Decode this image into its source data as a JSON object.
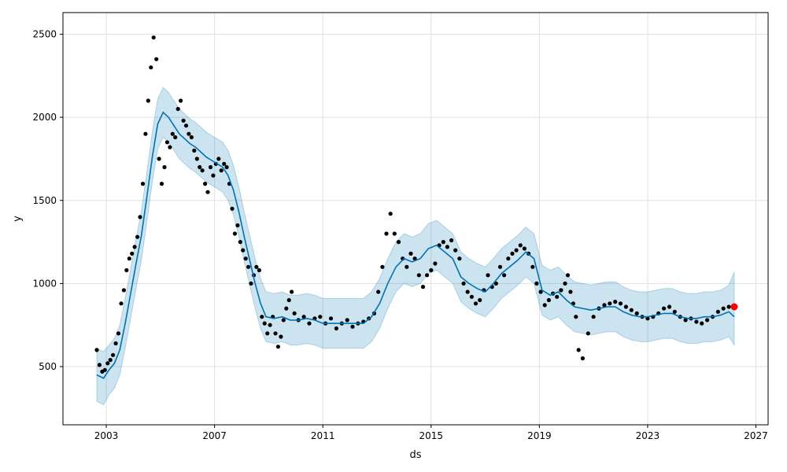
{
  "chart_data": {
    "type": "line",
    "title": "",
    "xlabel": "ds",
    "ylabel": "y",
    "xlim": [
      2001.4,
      2027.45
    ],
    "ylim": [
      150,
      2630
    ],
    "grid": true,
    "x_ticks": [
      2003,
      2007,
      2011,
      2015,
      2019,
      2023,
      2027
    ],
    "x_tick_labels": [
      "2003",
      "2007",
      "2011",
      "2015",
      "2019",
      "2023",
      "2027"
    ],
    "y_ticks": [
      500,
      1000,
      1500,
      2000,
      2500
    ],
    "y_tick_labels": [
      "500",
      "1000",
      "1500",
      "2000",
      "2500"
    ],
    "colors": {
      "observed": "#000000",
      "forecast_line": "#0072b2",
      "uncertainty_band": "#0072b2",
      "highlight_point": "#ff0000",
      "grid": "#e0e0e0"
    },
    "series": [
      {
        "kind": "forecast",
        "x": [
          2002.65,
          2002.9,
          2003.1,
          2003.3,
          2003.5,
          2003.7,
          2003.9,
          2004.1,
          2004.3,
          2004.5,
          2004.7,
          2004.9,
          2005.1,
          2005.3,
          2005.5,
          2005.7,
          2005.9,
          2006.1,
          2006.3,
          2006.5,
          2006.7,
          2006.9,
          2007.1,
          2007.3,
          2007.5,
          2007.7,
          2007.9,
          2008.1,
          2008.3,
          2008.5,
          2008.7,
          2008.9,
          2009.2,
          2009.5,
          2009.8,
          2010.1,
          2010.4,
          2010.7,
          2011.0,
          2011.3,
          2011.6,
          2011.9,
          2012.2,
          2012.5,
          2012.8,
          2013.1,
          2013.4,
          2013.7,
          2014.0,
          2014.3,
          2014.6,
          2014.9,
          2015.2,
          2015.5,
          2015.8,
          2016.1,
          2016.4,
          2016.7,
          2017.0,
          2017.3,
          2017.6,
          2017.9,
          2018.2,
          2018.5,
          2018.8,
          2019.1,
          2019.4,
          2019.7,
          2020.0,
          2020.3,
          2020.6,
          2020.9,
          2021.2,
          2021.5,
          2021.8,
          2022.1,
          2022.4,
          2022.7,
          2023.0,
          2023.3,
          2023.6,
          2023.9,
          2024.2,
          2024.5,
          2024.8,
          2025.1,
          2025.4,
          2025.7,
          2026.0,
          2026.2
        ],
        "y": [
          450,
          430,
          480,
          520,
          600,
          760,
          940,
          1120,
          1290,
          1520,
          1760,
          1960,
          2030,
          2000,
          1950,
          1900,
          1870,
          1840,
          1820,
          1790,
          1760,
          1740,
          1720,
          1700,
          1650,
          1560,
          1430,
          1280,
          1140,
          1000,
          880,
          800,
          790,
          800,
          780,
          780,
          790,
          780,
          760,
          760,
          760,
          760,
          760,
          760,
          800,
          880,
          1000,
          1100,
          1150,
          1130,
          1150,
          1210,
          1230,
          1190,
          1150,
          1040,
          1000,
          970,
          950,
          1000,
          1060,
          1100,
          1140,
          1190,
          1150,
          960,
          930,
          950,
          900,
          860,
          850,
          840,
          850,
          860,
          860,
          830,
          810,
          800,
          800,
          810,
          820,
          820,
          800,
          790,
          790,
          800,
          800,
          810,
          830,
          800
        ]
      },
      {
        "kind": "uncertainty",
        "x": [
          2002.65,
          2002.9,
          2003.1,
          2003.3,
          2003.5,
          2003.7,
          2003.9,
          2004.1,
          2004.3,
          2004.5,
          2004.7,
          2004.9,
          2005.1,
          2005.3,
          2005.5,
          2005.7,
          2005.9,
          2006.1,
          2006.3,
          2006.5,
          2006.7,
          2006.9,
          2007.1,
          2007.3,
          2007.5,
          2007.7,
          2007.9,
          2008.1,
          2008.3,
          2008.5,
          2008.7,
          2008.9,
          2009.2,
          2009.5,
          2009.8,
          2010.1,
          2010.4,
          2010.7,
          2011.0,
          2011.3,
          2011.6,
          2011.9,
          2012.2,
          2012.5,
          2012.8,
          2013.1,
          2013.4,
          2013.7,
          2014.0,
          2014.3,
          2014.6,
          2014.9,
          2015.2,
          2015.5,
          2015.8,
          2016.1,
          2016.4,
          2016.7,
          2017.0,
          2017.3,
          2017.6,
          2017.9,
          2018.2,
          2018.5,
          2018.8,
          2019.1,
          2019.4,
          2019.7,
          2020.0,
          2020.3,
          2020.6,
          2020.9,
          2021.2,
          2021.5,
          2021.8,
          2022.1,
          2022.4,
          2022.7,
          2023.0,
          2023.3,
          2023.6,
          2023.9,
          2024.2,
          2024.5,
          2024.8,
          2025.1,
          2025.4,
          2025.7,
          2026.0,
          2026.2
        ],
        "lower": [
          290,
          270,
          330,
          370,
          450,
          610,
          790,
          970,
          1140,
          1370,
          1610,
          1810,
          1880,
          1850,
          1800,
          1750,
          1720,
          1690,
          1670,
          1640,
          1610,
          1590,
          1570,
          1550,
          1500,
          1410,
          1280,
          1130,
          990,
          850,
          730,
          650,
          640,
          650,
          630,
          630,
          640,
          630,
          610,
          610,
          610,
          610,
          610,
          610,
          650,
          730,
          850,
          950,
          1000,
          980,
          1000,
          1060,
          1080,
          1040,
          1000,
          890,
          850,
          820,
          800,
          850,
          910,
          950,
          990,
          1040,
          1000,
          810,
          780,
          800,
          750,
          710,
          700,
          690,
          700,
          710,
          710,
          680,
          660,
          650,
          650,
          660,
          670,
          670,
          650,
          640,
          640,
          650,
          650,
          660,
          680,
          630
        ],
        "upper": [
          610,
          590,
          630,
          670,
          750,
          910,
          1090,
          1270,
          1440,
          1670,
          1910,
          2110,
          2180,
          2150,
          2100,
          2050,
          2020,
          1990,
          1970,
          1940,
          1910,
          1890,
          1870,
          1850,
          1800,
          1710,
          1580,
          1430,
          1290,
          1150,
          1030,
          950,
          940,
          950,
          930,
          930,
          940,
          930,
          910,
          910,
          910,
          910,
          910,
          910,
          950,
          1030,
          1150,
          1250,
          1300,
          1280,
          1300,
          1360,
          1380,
          1340,
          1300,
          1190,
          1150,
          1120,
          1100,
          1150,
          1210,
          1250,
          1290,
          1340,
          1300,
          1110,
          1080,
          1100,
          1050,
          1010,
          1000,
          990,
          1000,
          1010,
          1010,
          980,
          960,
          950,
          950,
          960,
          970,
          970,
          950,
          940,
          940,
          950,
          950,
          960,
          990,
          1070
        ]
      },
      {
        "kind": "observed",
        "x": [
          2002.65,
          2002.75,
          2002.85,
          2002.95,
          2003.05,
          2003.15,
          2003.25,
          2003.35,
          2003.45,
          2003.55,
          2003.65,
          2003.75,
          2003.85,
          2003.95,
          2004.05,
          2004.15,
          2004.25,
          2004.35,
          2004.45,
          2004.55,
          2004.65,
          2004.75,
          2004.85,
          2004.95,
          2005.05,
          2005.15,
          2005.25,
          2005.35,
          2005.45,
          2005.55,
          2005.65,
          2005.75,
          2005.85,
          2005.95,
          2006.05,
          2006.15,
          2006.25,
          2006.35,
          2006.45,
          2006.55,
          2006.65,
          2006.75,
          2006.85,
          2006.95,
          2007.05,
          2007.15,
          2007.25,
          2007.35,
          2007.45,
          2007.55,
          2007.65,
          2007.75,
          2007.85,
          2007.95,
          2008.05,
          2008.15,
          2008.25,
          2008.35,
          2008.45,
          2008.55,
          2008.65,
          2008.75,
          2008.85,
          2008.95,
          2009.05,
          2009.15,
          2009.25,
          2009.35,
          2009.45,
          2009.55,
          2009.65,
          2009.75,
          2009.85,
          2009.95,
          2010.1,
          2010.3,
          2010.5,
          2010.7,
          2010.9,
          2011.1,
          2011.3,
          2011.5,
          2011.7,
          2011.9,
          2012.1,
          2012.3,
          2012.5,
          2012.7,
          2012.9,
          2013.05,
          2013.2,
          2013.35,
          2013.5,
          2013.65,
          2013.8,
          2013.95,
          2014.1,
          2014.25,
          2014.4,
          2014.55,
          2014.7,
          2014.85,
          2015.0,
          2015.15,
          2015.3,
          2015.45,
          2015.6,
          2015.75,
          2015.9,
          2016.05,
          2016.2,
          2016.35,
          2016.5,
          2016.65,
          2016.8,
          2016.95,
          2017.1,
          2017.25,
          2017.4,
          2017.55,
          2017.7,
          2017.85,
          2018.0,
          2018.15,
          2018.3,
          2018.45,
          2018.6,
          2018.75,
          2018.9,
          2019.05,
          2019.2,
          2019.35,
          2019.5,
          2019.65,
          2019.8,
          2019.95,
          2020.05,
          2020.15,
          2020.25,
          2020.35,
          2020.45,
          2020.6,
          2020.8,
          2021.0,
          2021.2,
          2021.4,
          2021.6,
          2021.8,
          2022.0,
          2022.2,
          2022.4,
          2022.6,
          2022.8,
          2023.0,
          2023.2,
          2023.4,
          2023.6,
          2023.8,
          2024.0,
          2024.2,
          2024.4,
          2024.6,
          2024.8,
          2025.0,
          2025.2,
          2025.4,
          2025.6,
          2025.8,
          2026.0
        ],
        "y": [
          600,
          510,
          470,
          480,
          520,
          540,
          570,
          640,
          700,
          880,
          960,
          1080,
          1150,
          1180,
          1220,
          1280,
          1400,
          1600,
          1900,
          2100,
          2300,
          2480,
          2350,
          1750,
          1600,
          1700,
          1850,
          1820,
          1900,
          1880,
          2050,
          2100,
          1980,
          1950,
          1900,
          1880,
          1800,
          1750,
          1700,
          1680,
          1600,
          1550,
          1700,
          1650,
          1720,
          1750,
          1680,
          1720,
          1700,
          1600,
          1450,
          1300,
          1350,
          1250,
          1200,
          1150,
          1100,
          1000,
          1050,
          1100,
          1080,
          800,
          760,
          700,
          750,
          800,
          700,
          620,
          680,
          780,
          850,
          900,
          950,
          820,
          780,
          800,
          760,
          790,
          800,
          760,
          790,
          730,
          760,
          780,
          740,
          760,
          770,
          790,
          820,
          950,
          1100,
          1300,
          1420,
          1300,
          1250,
          1150,
          1100,
          1180,
          1150,
          1050,
          980,
          1050,
          1080,
          1120,
          1230,
          1250,
          1220,
          1260,
          1200,
          1150,
          1000,
          950,
          920,
          880,
          900,
          960,
          1050,
          980,
          1000,
          1100,
          1050,
          1150,
          1180,
          1200,
          1230,
          1210,
          1180,
          1100,
          1000,
          950,
          870,
          900,
          940,
          920,
          960,
          1000,
          1050,
          950,
          880,
          800,
          600,
          550,
          700,
          800,
          850,
          870,
          880,
          890,
          880,
          860,
          840,
          820,
          800,
          790,
          800,
          820,
          850,
          860,
          830,
          800,
          780,
          790,
          770,
          760,
          780,
          800,
          830,
          850,
          860
        ]
      }
    ],
    "highlight_point": {
      "x": 2026.2,
      "y": 860
    }
  }
}
